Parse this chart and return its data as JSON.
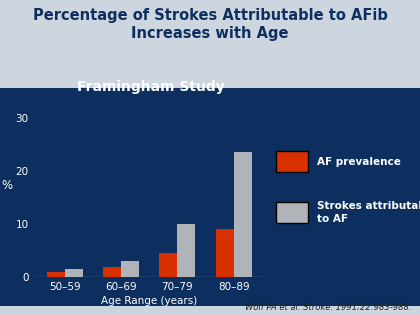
{
  "title": "Percentage of Strokes Attributable to AFib\nIncreases with Age",
  "chart_title": "Framingham Study",
  "categories": [
    "50–59",
    "60–69",
    "70–79",
    "80–89"
  ],
  "af_prevalence": [
    1.0,
    2.0,
    4.5,
    9.0
  ],
  "strokes_attributable": [
    1.5,
    3.0,
    10.0,
    23.5
  ],
  "xlabel": "Age Range (years)",
  "ylabel": "%",
  "ylim": [
    0,
    32
  ],
  "yticks": [
    0,
    10,
    20,
    30
  ],
  "bar_color_af": "#d93000",
  "bar_color_strokes": "#b0b4b8",
  "background_color": "#0d2f60",
  "outer_bg": "#cdd5df",
  "title_color": "#0d2f60",
  "axis_text_color": "#ffffff",
  "legend_label_af": "AF prevalence",
  "legend_label_strokes": "Strokes attributable\nto AF",
  "citation": "Wolf PA et al. Stroke. 1991;22:983-988.",
  "bar_width": 0.32
}
